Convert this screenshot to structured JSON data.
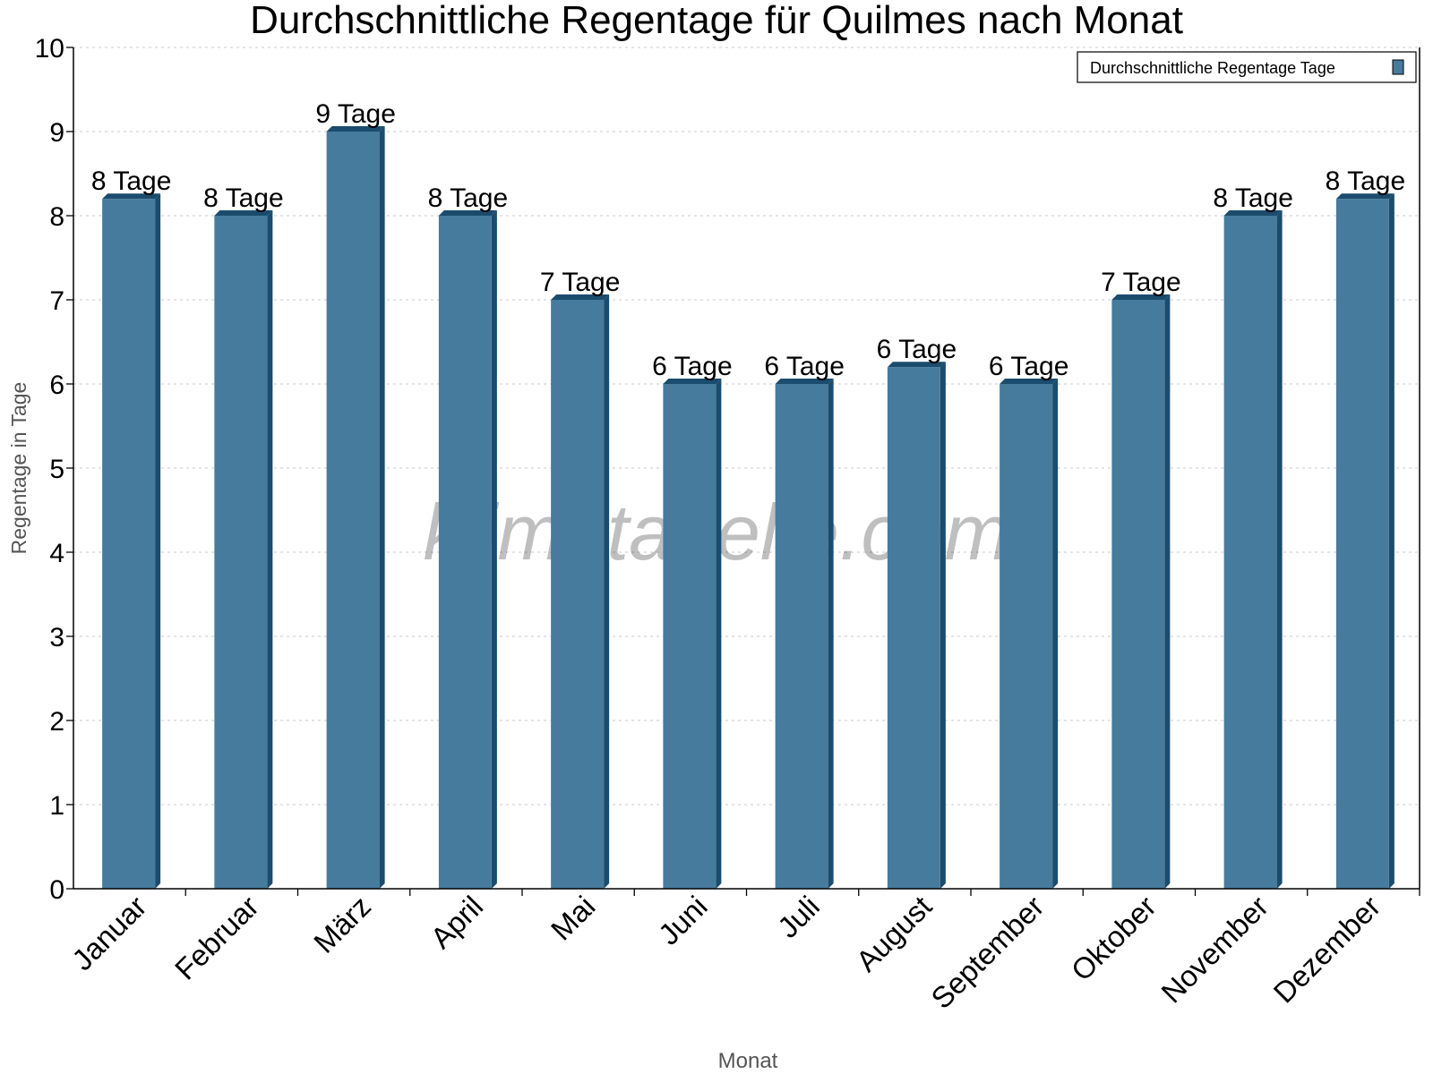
{
  "chart_data": {
    "type": "bar",
    "title": "Durchschnittliche Regentage für Quilmes nach Monat",
    "xlabel": "Monat",
    "ylabel": "Regentage in Tage",
    "categories": [
      "Januar",
      "Februar",
      "März",
      "April",
      "Mai",
      "Juni",
      "Juli",
      "August",
      "September",
      "Oktober",
      "November",
      "Dezember"
    ],
    "series": [
      {
        "name": "Durchschnittliche Regentage Tage",
        "values": [
          8.2,
          8,
          9,
          8,
          7,
          6,
          6,
          6.2,
          6,
          7,
          8,
          8.2
        ],
        "labels": [
          "8 Tage",
          "8 Tage",
          "9 Tage",
          "8 Tage",
          "7 Tage",
          "6 Tage",
          "6 Tage",
          "6 Tage",
          "6 Tage",
          "7 Tage",
          "8 Tage",
          "8 Tage"
        ]
      }
    ],
    "ylim": [
      0,
      10
    ],
    "yticks": [
      "0",
      "1",
      "2",
      "3",
      "4",
      "5",
      "6",
      "7",
      "8",
      "9",
      "10"
    ],
    "grid": true,
    "legend_position": "top-right",
    "watermark": "klimatabelle.com",
    "colors": {
      "bar_front": "#467b9d",
      "bar_side": "#1b4c6e",
      "grid": "#c8c8c8"
    }
  }
}
